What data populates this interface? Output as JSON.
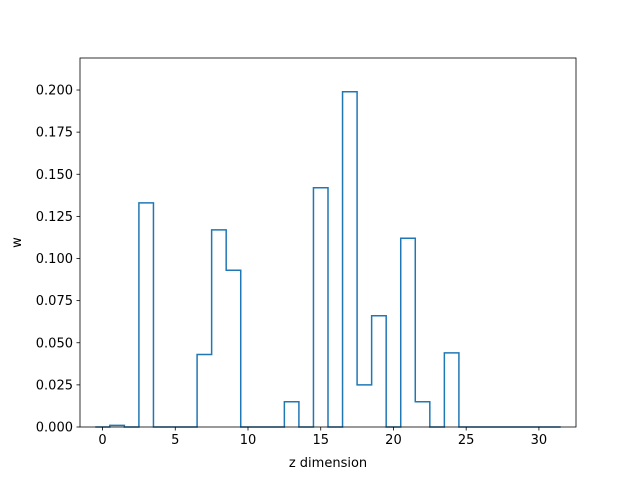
{
  "chart_data": {
    "type": "step",
    "title": "",
    "xlabel": "z dimension",
    "ylabel": "w",
    "xlim": [
      -1.55,
      32.55
    ],
    "ylim": [
      0,
      0.219
    ],
    "xticks": [
      0,
      5,
      10,
      15,
      20,
      25,
      30
    ],
    "yticks": [
      0.0,
      0.025,
      0.05,
      0.075,
      0.1,
      0.125,
      0.15,
      0.175,
      0.2
    ],
    "ytick_labels": [
      "0.000",
      "0.025",
      "0.050",
      "0.075",
      "0.100",
      "0.125",
      "0.150",
      "0.175",
      "0.200"
    ],
    "color": "#1f77b4",
    "grid": false,
    "x": [
      0,
      1,
      2,
      3,
      4,
      5,
      6,
      7,
      8,
      9,
      10,
      11,
      12,
      13,
      14,
      15,
      16,
      17,
      18,
      19,
      20,
      21,
      22,
      23,
      24,
      25,
      26,
      27,
      28,
      29,
      30,
      31
    ],
    "values": [
      0.0,
      0.001,
      0.0,
      0.133,
      0.0,
      0.0,
      0.0,
      0.043,
      0.117,
      0.093,
      0.0,
      0.0,
      0.0,
      0.015,
      0.0,
      0.142,
      0.0,
      0.199,
      0.025,
      0.066,
      0.0,
      0.112,
      0.015,
      0.0,
      0.044,
      0.0,
      0.0,
      0.0,
      0.0,
      0.0,
      0.0,
      0.0
    ]
  }
}
